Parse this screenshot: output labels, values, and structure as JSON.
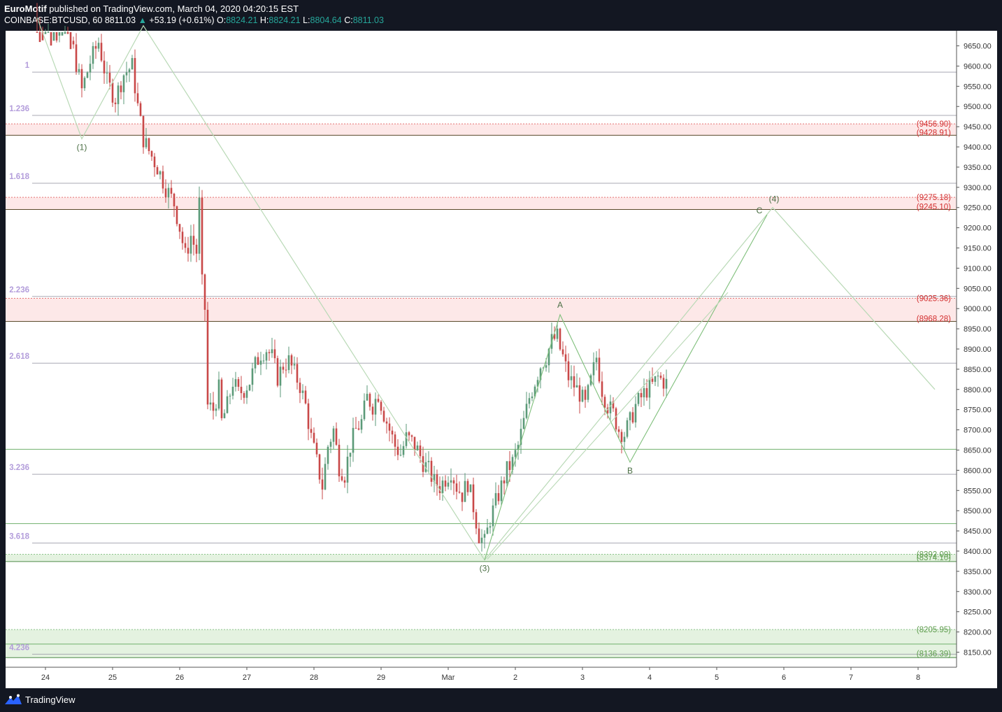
{
  "header": {
    "author": "EuroMotif",
    "published_text": "published on TradingView.com, March 04, 2020 04:20:15 EST",
    "symbol": "COINBASE:BTCUSD, 60",
    "last": "8811.03",
    "change": "+53.19 (+0.61%)",
    "o_label": "O:",
    "o": "8824.21",
    "h_label": "H:",
    "h": "8824.21",
    "l_label": "L:",
    "l": "8804.64",
    "c_label": "C:",
    "c": "8811.03"
  },
  "footer": {
    "brand": "TradingView",
    "logo_icon": "tradingview-logo-icon"
  },
  "colors": {
    "background": "#ffffff",
    "up": "#5b9a78",
    "down": "#c94848",
    "fib_text": "#b39ddb",
    "resistance_fill": "#fde8e8",
    "support_fill": "#e4f2e0",
    "resistance_text": "#d32f2f",
    "support_text": "#5d9c4c",
    "wave_line": "#b9d9b6",
    "wave_line_dark": "#7fbf7b"
  },
  "chart_data": {
    "type": "candlestick",
    "title": "COINBASE:BTCUSD, 60",
    "ylim": [
      8120,
      9700
    ],
    "y_ticks": [
      "9650.00",
      "9600.00",
      "9550.00",
      "9500.00",
      "9450.00",
      "9400.00",
      "9350.00",
      "9300.00",
      "9250.00",
      "9200.00",
      "9150.00",
      "9100.00",
      "9050.00",
      "9000.00",
      "8950.00",
      "8900.00",
      "8850.00",
      "8800.00",
      "8750.00",
      "8700.00",
      "8650.00",
      "8600.00",
      "8550.00",
      "8500.00",
      "8450.00",
      "8400.00",
      "8350.00",
      "8300.00",
      "8250.00",
      "8200.00",
      "8150.00"
    ],
    "x_ticks": [
      {
        "label": "24",
        "t": 0
      },
      {
        "label": "25",
        "t": 24
      },
      {
        "label": "26",
        "t": 48
      },
      {
        "label": "27",
        "t": 72
      },
      {
        "label": "28",
        "t": 96
      },
      {
        "label": "29",
        "t": 120
      },
      {
        "label": "Mar",
        "t": 144
      },
      {
        "label": "2",
        "t": 168
      },
      {
        "label": "3",
        "t": 192
      },
      {
        "label": "4",
        "t": 216
      },
      {
        "label": "5",
        "t": 240
      },
      {
        "label": "6",
        "t": 264
      },
      {
        "label": "7",
        "t": 288
      },
      {
        "label": "8",
        "t": 312
      }
    ],
    "fib_levels": [
      {
        "label": "1",
        "price": 9585
      },
      {
        "label": "1.236",
        "price": 9478
      },
      {
        "label": "1.618",
        "price": 9310
      },
      {
        "label": "2.236",
        "price": 9030
      },
      {
        "label": "2.618",
        "price": 8865
      },
      {
        "label": "3.236",
        "price": 8590
      },
      {
        "label": "3.618",
        "price": 8420
      },
      {
        "label": "4.236",
        "price": 8145
      }
    ],
    "zones": [
      {
        "kind": "resistance",
        "top": 9456.9,
        "bottom": 9428.91,
        "top_label": "(9456.90)",
        "bottom_label": "(9428.91)"
      },
      {
        "kind": "resistance",
        "top": 9275.18,
        "bottom": 9245.1,
        "top_label": "(9275.18)",
        "bottom_label": "(9245.10)"
      },
      {
        "kind": "resistance",
        "top": 9025.36,
        "bottom": 8968.28,
        "top_label": "(9025.36)",
        "bottom_label": "(8968.28)"
      },
      {
        "kind": "support",
        "top": 8392.09,
        "bottom": 8374.1,
        "top_label": "(8392.09)",
        "bottom_label": "(8374.10)"
      },
      {
        "kind": "support",
        "top": 8205.95,
        "bottom": 8136.39,
        "top_label": "(8205.95)",
        "bottom_label": "(8136.39)"
      }
    ],
    "support_lines": [
      8652,
      8468,
      8170
    ],
    "wave_labels": [
      {
        "label": "(1)",
        "t": 13,
        "price": 9420,
        "pos": "below"
      },
      {
        "label": "(3)",
        "t": 157,
        "price": 8378,
        "pos": "below"
      },
      {
        "label": "A",
        "t": 184,
        "price": 8985,
        "pos": "above"
      },
      {
        "label": "B",
        "t": 209,
        "price": 8620,
        "pos": "below"
      },
      {
        "label": "C",
        "t": 258,
        "price": 9232,
        "pos": "above-left"
      },
      {
        "label": "(4)",
        "t": 260,
        "price": 9250,
        "pos": "above-right"
      }
    ],
    "wave_path_main": [
      [
        -3,
        9720
      ],
      [
        13,
        9420
      ],
      [
        35,
        9700
      ],
      [
        157,
        8378
      ],
      [
        260,
        9250
      ],
      [
        318,
        8800
      ]
    ],
    "wave_path_abc": [
      [
        157,
        8378
      ],
      [
        184,
        8985
      ],
      [
        209,
        8620
      ],
      [
        258,
        9232
      ]
    ],
    "channel_line": [
      [
        158,
        8380
      ],
      [
        244,
        9040
      ]
    ],
    "candles_anchor": [
      [
        -3,
        9760
      ],
      [
        2,
        9700
      ],
      [
        6,
        9720
      ],
      [
        10,
        9640
      ],
      [
        13,
        9540
      ],
      [
        16,
        9610
      ],
      [
        19,
        9660
      ],
      [
        22,
        9560
      ],
      [
        25,
        9520
      ],
      [
        28,
        9580
      ],
      [
        31,
        9600
      ],
      [
        33,
        9500
      ],
      [
        35,
        9420
      ],
      [
        37,
        9390
      ],
      [
        40,
        9350
      ],
      [
        43,
        9300
      ],
      [
        46,
        9260
      ],
      [
        48,
        9200
      ],
      [
        50,
        9130
      ],
      [
        52,
        9180
      ],
      [
        54,
        9140
      ],
      [
        55,
        9260
      ],
      [
        56,
        9060
      ],
      [
        57,
        9000
      ],
      [
        58,
        8760
      ],
      [
        60,
        8750
      ],
      [
        62,
        8800
      ],
      [
        63,
        8720
      ],
      [
        65,
        8760
      ],
      [
        67,
        8820
      ],
      [
        69,
        8790
      ],
      [
        71,
        8800
      ],
      [
        73,
        8820
      ],
      [
        75,
        8860
      ],
      [
        77,
        8890
      ],
      [
        79,
        8900
      ],
      [
        81,
        8880
      ],
      [
        83,
        8830
      ],
      [
        85,
        8860
      ],
      [
        87,
        8870
      ],
      [
        89,
        8840
      ],
      [
        91,
        8810
      ],
      [
        93,
        8760
      ],
      [
        95,
        8680
      ],
      [
        97,
        8620
      ],
      [
        99,
        8560
      ],
      [
        101,
        8660
      ],
      [
        103,
        8700
      ],
      [
        105,
        8610
      ],
      [
        107,
        8590
      ],
      [
        109,
        8660
      ],
      [
        111,
        8700
      ],
      [
        113,
        8720
      ],
      [
        115,
        8780
      ],
      [
        117,
        8760
      ],
      [
        119,
        8790
      ],
      [
        121,
        8740
      ],
      [
        123,
        8700
      ],
      [
        125,
        8660
      ],
      [
        127,
        8640
      ],
      [
        129,
        8680
      ],
      [
        131,
        8670
      ],
      [
        133,
        8650
      ],
      [
        135,
        8620
      ],
      [
        137,
        8600
      ],
      [
        139,
        8570
      ],
      [
        141,
        8560
      ],
      [
        143,
        8580
      ],
      [
        145,
        8600
      ],
      [
        147,
        8560
      ],
      [
        149,
        8540
      ],
      [
        151,
        8570
      ],
      [
        153,
        8510
      ],
      [
        155,
        8440
      ],
      [
        157,
        8420
      ],
      [
        159,
        8480
      ],
      [
        161,
        8520
      ],
      [
        163,
        8560
      ],
      [
        165,
        8600
      ],
      [
        167,
        8620
      ],
      [
        169,
        8660
      ],
      [
        171,
        8720
      ],
      [
        173,
        8780
      ],
      [
        175,
        8820
      ],
      [
        177,
        8860
      ],
      [
        179,
        8880
      ],
      [
        181,
        8920
      ],
      [
        183,
        8930
      ],
      [
        184,
        8900
      ],
      [
        185,
        8880
      ],
      [
        187,
        8830
      ],
      [
        189,
        8810
      ],
      [
        191,
        8790
      ],
      [
        193,
        8760
      ],
      [
        195,
        8820
      ],
      [
        197,
        8880
      ],
      [
        199,
        8800
      ],
      [
        201,
        8760
      ],
      [
        203,
        8740
      ],
      [
        205,
        8700
      ],
      [
        207,
        8690
      ],
      [
        209,
        8720
      ],
      [
        211,
        8760
      ],
      [
        213,
        8780
      ],
      [
        215,
        8800
      ],
      [
        217,
        8810
      ],
      [
        219,
        8830
      ],
      [
        221,
        8820
      ],
      [
        223,
        8811
      ]
    ]
  }
}
